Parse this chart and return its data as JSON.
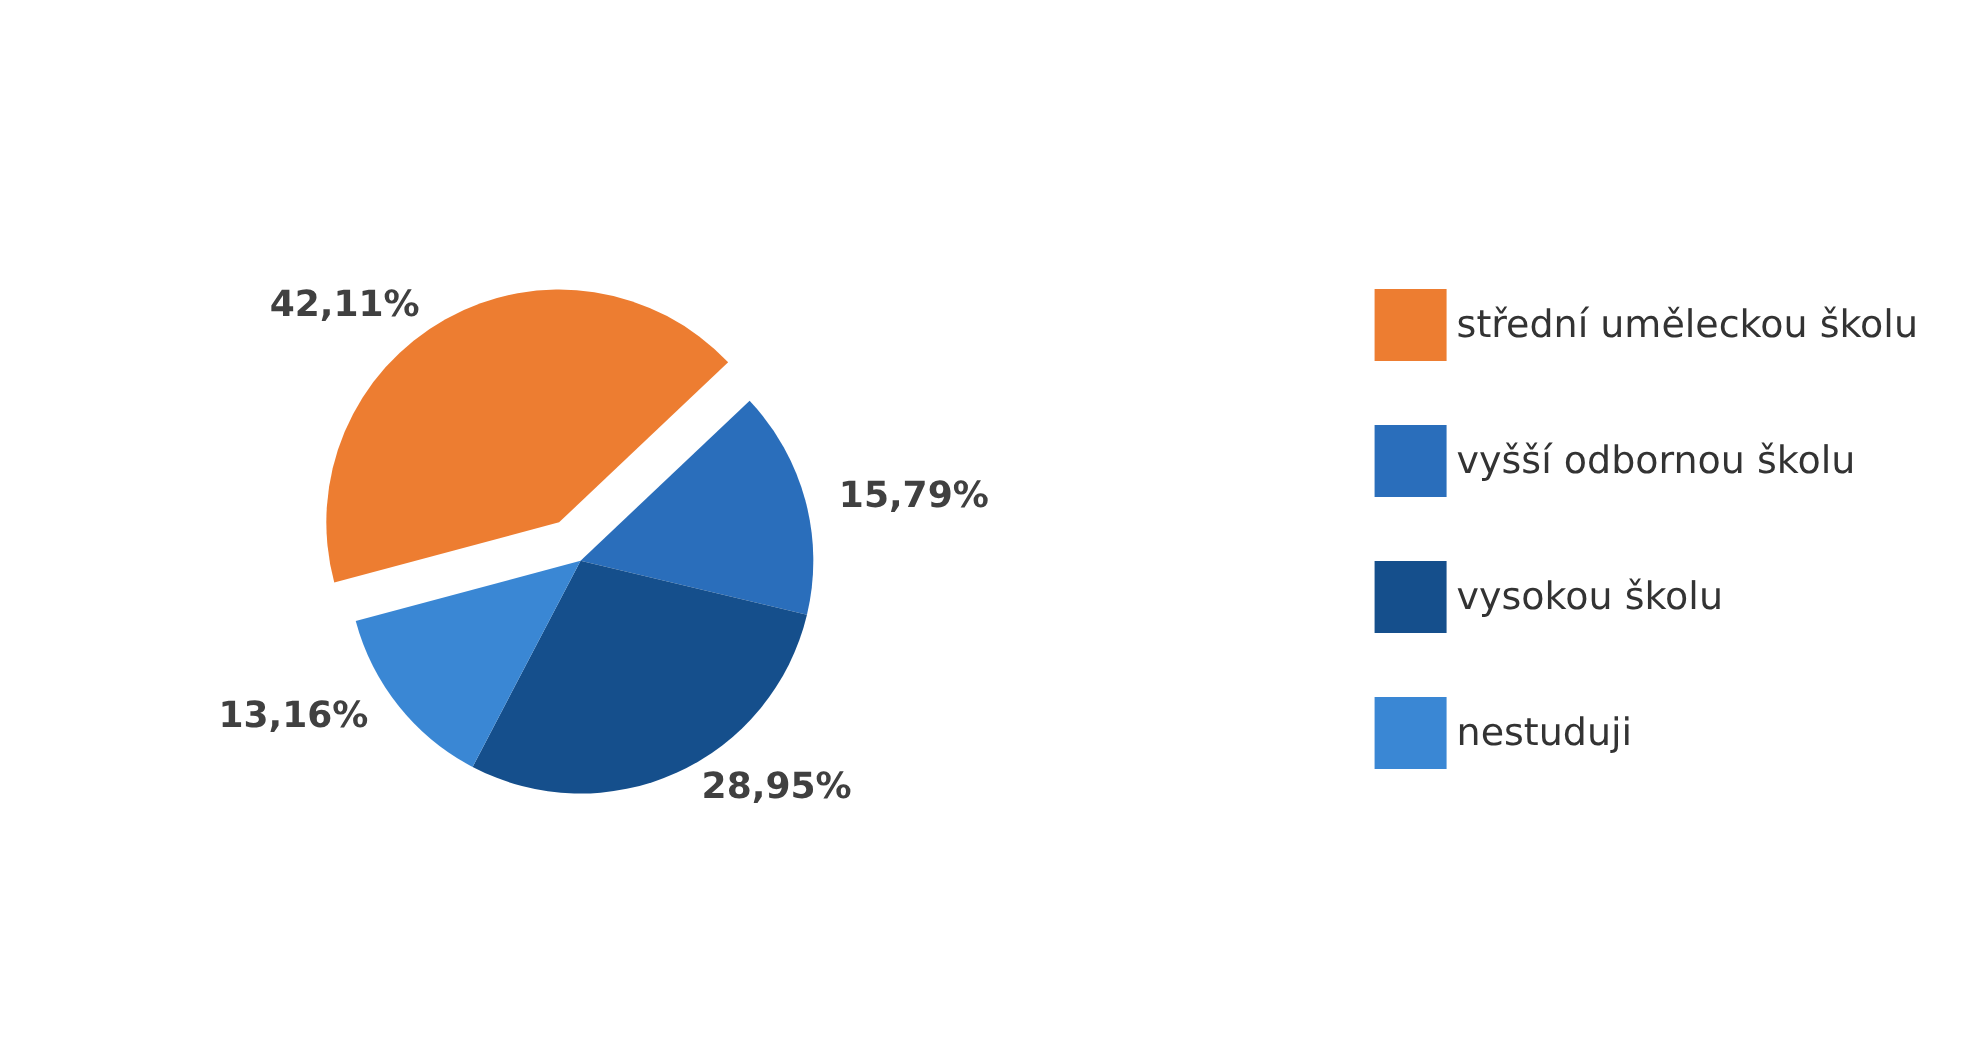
{
  "chart_data": {
    "type": "pie",
    "categories": [
      "střední uměleckou školu",
      "vyšší odbornou školu",
      "vysokou školu",
      "nestuduji"
    ],
    "values": [
      42.11,
      15.79,
      28.95,
      13.16
    ],
    "value_labels": [
      "42,11%",
      "15,79%",
      "28,95%",
      "13,16%"
    ],
    "colors": [
      "#ed7d31",
      "#2a6ebb",
      "#154f8c",
      "#3a87d4"
    ],
    "legend": "right"
  }
}
